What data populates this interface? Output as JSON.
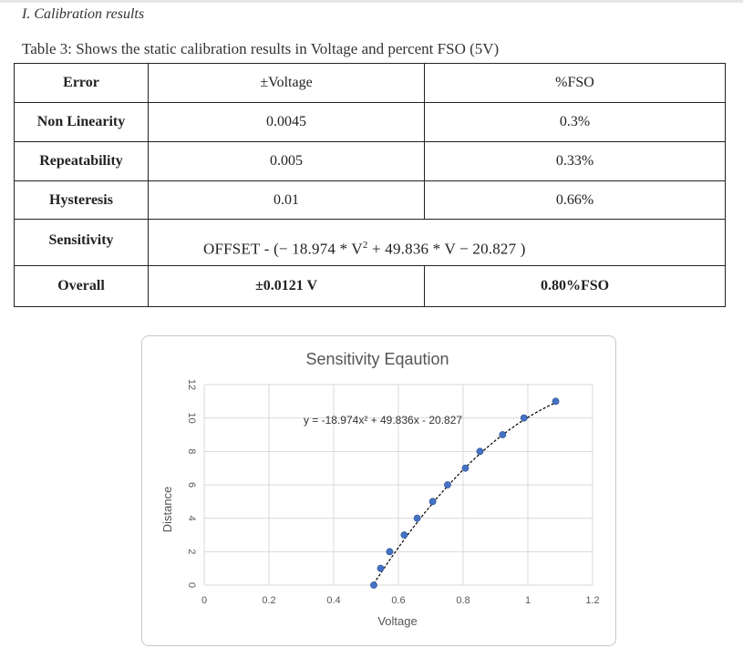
{
  "section_heading": "I. Calibration results",
  "table": {
    "caption": "Table 3: Shows the static calibration results in Voltage and percent FSO (5V)",
    "headers": [
      "Error",
      "±Voltage",
      "%FSO"
    ],
    "rows": [
      {
        "label": "Non Linearity",
        "voltage": "0.0045",
        "fso": "0.3%"
      },
      {
        "label": "Repeatability",
        "voltage": "0.005",
        "fso": "0.33%"
      },
      {
        "label": "Hysteresis",
        "voltage": "0.01",
        "fso": "0.66%"
      }
    ],
    "sensitivity": {
      "label": "Sensitivity",
      "formula_prefix": "OFFSET - (− 18.974  *  V",
      "formula_exponent": "2",
      "formula_suffix": "  + 49.836  *  V  −  20.827 )"
    },
    "overall": {
      "label": "Overall",
      "voltage": "±0.0121 V",
      "fso": "0.80%FSO"
    }
  },
  "chart_data": {
    "type": "scatter",
    "title": "Sensitivity Eqaution",
    "xlabel": "Voltage",
    "ylabel": "Distance",
    "xlim": [
      0,
      1.2
    ],
    "ylim": [
      0,
      12
    ],
    "xticks": [
      "0",
      "0.2",
      "0.4",
      "0.6",
      "0.8",
      "1",
      "1.2"
    ],
    "yticks": [
      "0",
      "2",
      "4",
      "6",
      "8",
      "10",
      "12"
    ],
    "grid": true,
    "trendline_label": "y = -18.974x² + 49.836x - 20.827",
    "trendline_coefficients": {
      "a": -18.974,
      "b": 49.836,
      "c": -20.827
    },
    "point_color": "#4472c4",
    "series": [
      {
        "x": [
          0.524,
          0.545,
          0.573,
          0.618,
          0.658,
          0.706,
          0.752,
          0.807,
          0.852,
          0.922,
          0.988,
          1.086
        ],
        "y": [
          0,
          1,
          2,
          3,
          4,
          5,
          6,
          7,
          8,
          9,
          10,
          11
        ]
      }
    ]
  }
}
